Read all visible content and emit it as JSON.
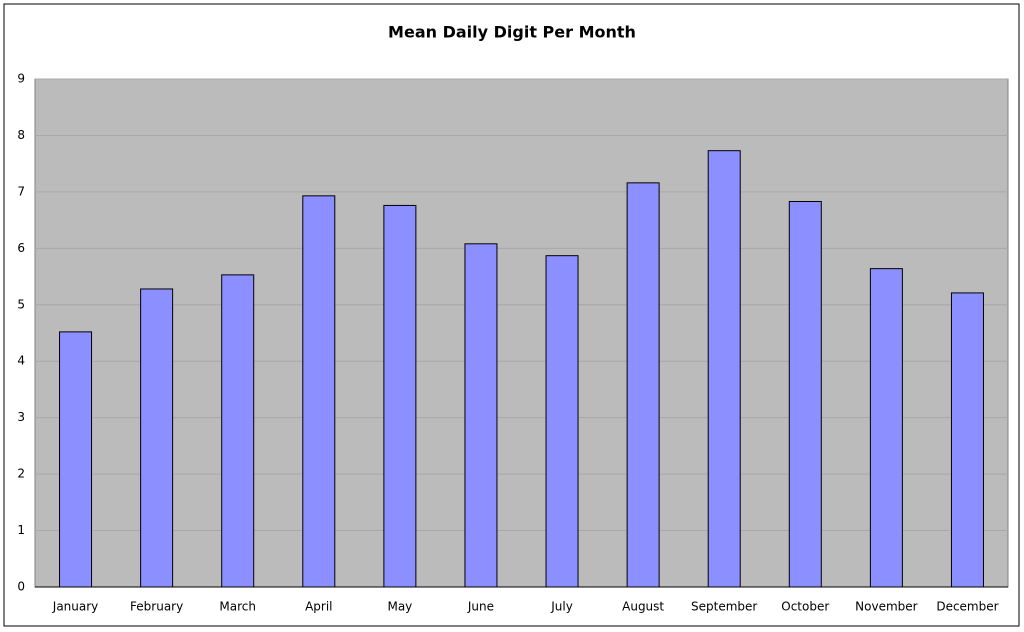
{
  "chart_data": {
    "type": "bar",
    "title": "Mean Daily Digit Per Month",
    "categories": [
      "January",
      "February",
      "March",
      "April",
      "May",
      "June",
      "July",
      "August",
      "September",
      "October",
      "November",
      "December"
    ],
    "values": [
      4.52,
      5.28,
      5.53,
      6.93,
      6.76,
      6.08,
      5.87,
      7.16,
      7.73,
      6.83,
      5.64,
      5.21
    ],
    "color": "#8c8fff",
    "ylim": [
      0,
      9
    ],
    "yticks": [
      0,
      1,
      2,
      3,
      4,
      5,
      6,
      7,
      8,
      9
    ],
    "grid": true
  }
}
